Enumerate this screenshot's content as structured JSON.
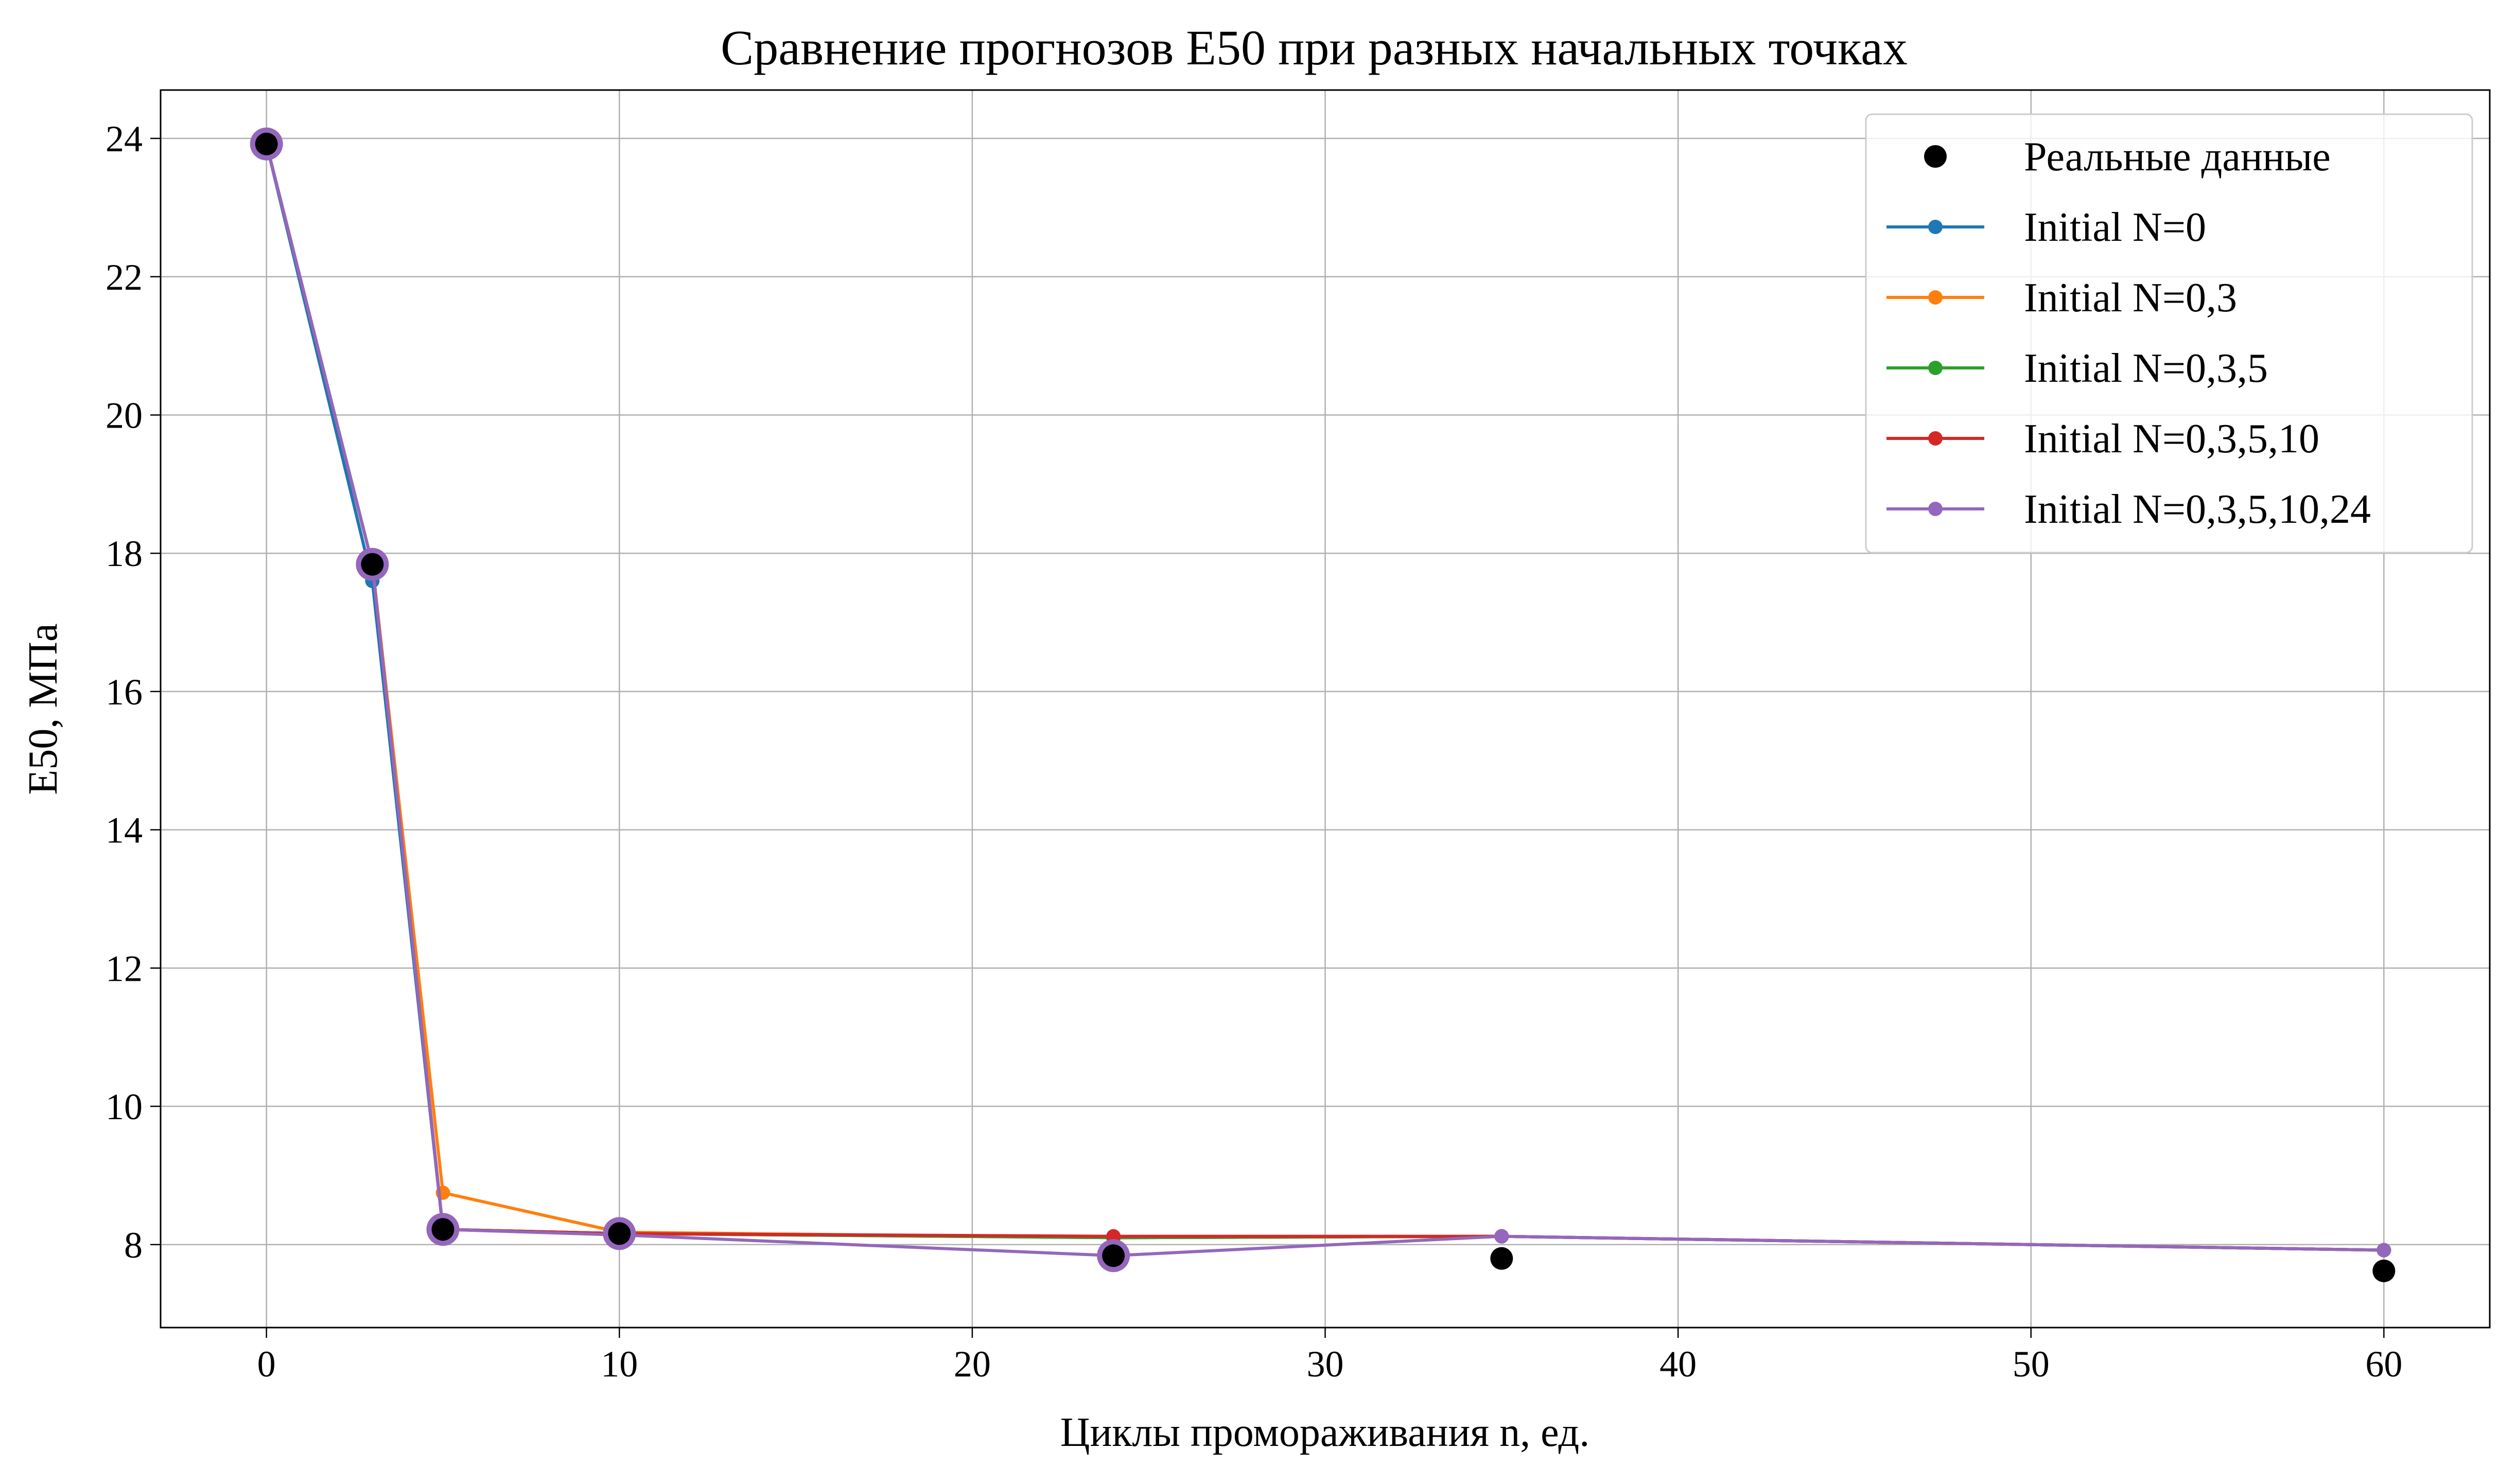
{
  "chart_data": {
    "type": "line",
    "title": "Сравнение прогнозов E50 при разных начальных точках",
    "xlabel": "Циклы промораживания n, ед.",
    "ylabel": "E50, МПа",
    "xlim": [
      -3,
      63
    ],
    "ylim": [
      6.8,
      24.7
    ],
    "x_ticks": [
      0,
      10,
      20,
      30,
      40,
      50,
      60
    ],
    "y_ticks": [
      8,
      10,
      12,
      14,
      16,
      18,
      20,
      22,
      24
    ],
    "grid": true,
    "legend_position": "top-right",
    "real_data": {
      "name": "Реальные данные",
      "color": "#000000",
      "x": [
        0,
        3,
        5,
        10,
        24,
        35,
        60
      ],
      "y": [
        23.92,
        17.84,
        8.22,
        8.16,
        7.84,
        7.8,
        7.62
      ]
    },
    "series": [
      {
        "name": "Initial N=0",
        "color": "#1f77b4",
        "x": [
          0,
          3,
          5,
          10,
          24,
          35,
          60
        ],
        "y": [
          23.92,
          17.6,
          8.22,
          8.16,
          8.1,
          8.12,
          7.92
        ]
      },
      {
        "name": "Initial N=0,3",
        "color": "#ff7f0e",
        "x": [
          0,
          3,
          5,
          10,
          24,
          35,
          60
        ],
        "y": [
          23.92,
          17.84,
          8.75,
          8.18,
          8.1,
          8.12,
          7.92
        ]
      },
      {
        "name": "Initial N=0,3,5",
        "color": "#2ca02c",
        "x": [
          0,
          3,
          5,
          10,
          24,
          35,
          60
        ],
        "y": [
          23.92,
          17.84,
          8.22,
          8.16,
          8.1,
          8.12,
          7.92
        ]
      },
      {
        "name": "Initial N=0,3,5,10",
        "color": "#d62728",
        "x": [
          0,
          3,
          5,
          10,
          24,
          35,
          60
        ],
        "y": [
          23.92,
          17.84,
          8.22,
          8.16,
          8.12,
          8.12,
          7.92
        ]
      },
      {
        "name": "Initial N=0,3,5,10,24",
        "color": "#9467bd",
        "x": [
          0,
          3,
          5,
          10,
          24,
          35,
          60
        ],
        "y": [
          23.92,
          17.84,
          8.22,
          8.14,
          7.84,
          8.12,
          7.92
        ]
      }
    ],
    "initial_points": {
      "color": "#9467bd",
      "x": [
        0,
        3,
        5,
        10,
        24
      ],
      "y": [
        23.92,
        17.84,
        8.22,
        8.16,
        7.84
      ]
    }
  }
}
